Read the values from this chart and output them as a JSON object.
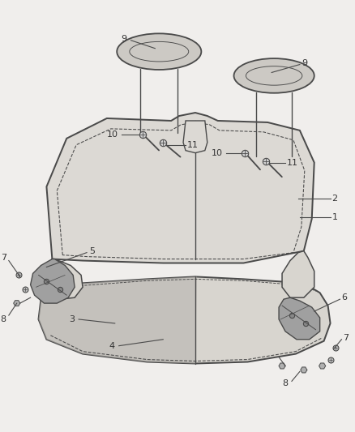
{
  "background_color": "#f0eeec",
  "line_color": "#4a4a4a",
  "label_color": "#333333",
  "font_size": 8,
  "line_width": 1.1,
  "seat_back_fill": "#dcd9d4",
  "cushion_fill": "#d8d5cf",
  "cushion_dark_fill": "#b8b5b0",
  "bracket_fill": "#a0a0a0",
  "headrest_fill": "#ccc9c4"
}
